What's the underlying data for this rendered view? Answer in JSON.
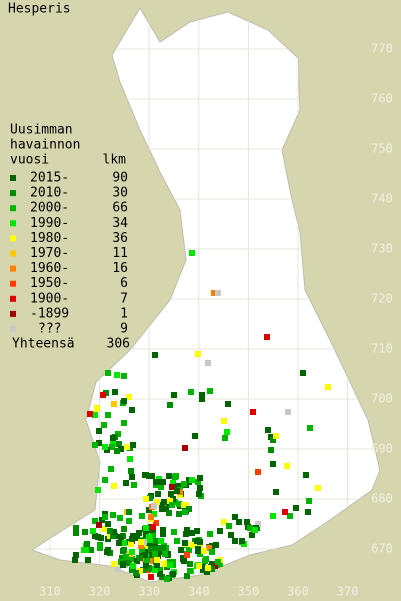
{
  "title": "Hesperis",
  "legend": {
    "heading": [
      "Uusimman",
      "havainnon",
      "vuosi"
    ],
    "count_heading": "lkm",
    "rows": [
      {
        "label": "2015-",
        "count": 90,
        "color": "#006400"
      },
      {
        "label": "2010-",
        "count": 30,
        "color": "#008c00"
      },
      {
        "label": "2000-",
        "count": 66,
        "color": "#00b400"
      },
      {
        "label": "1990-",
        "count": 34,
        "color": "#00e600"
      },
      {
        "label": "1980-",
        "count": 36,
        "color": "#ffff00"
      },
      {
        "label": "1970-",
        "count": 11,
        "color": "#ffc800"
      },
      {
        "label": "1960-",
        "count": 16,
        "color": "#ff8000"
      },
      {
        "label": "1950-",
        "count": 6,
        "color": "#ff3c00"
      },
      {
        "label": "1900-",
        "count": 7,
        "color": "#dc0000"
      },
      {
        "label": "-1899",
        "count": 1,
        "color": "#a00000"
      },
      {
        "label": "???",
        "count": 9,
        "color": "#c8c8c8"
      }
    ],
    "total_label": "Yhteensä",
    "total": 306
  },
  "x_axis": [
    310,
    320,
    330,
    340,
    350,
    360,
    370
  ],
  "y_axis": [
    770,
    760,
    750,
    740,
    730,
    720,
    710,
    700,
    690,
    680,
    670
  ]
}
